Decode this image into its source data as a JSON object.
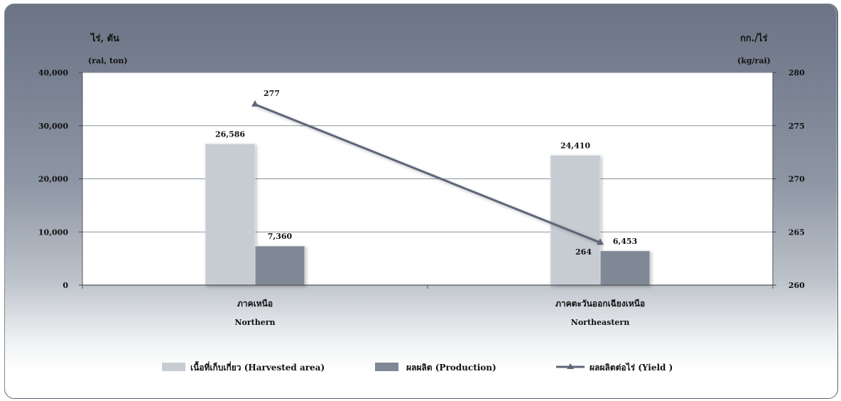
{
  "chart_data": {
    "type": "bar",
    "categories": [
      {
        "th": "ภาคเหนือ",
        "en": "Northern"
      },
      {
        "th": "ภาคตะวันออกเฉียงเหนือ",
        "en": "Northeastern"
      }
    ],
    "series": [
      {
        "name": "เนื้อที่เก็บเกี่ยว (Harvested area)",
        "kind": "bar",
        "axis": "left",
        "color": "#c7ccd3",
        "values": [
          26586,
          24410
        ],
        "labels": [
          "26,586",
          "24,410"
        ]
      },
      {
        "name": "ผลผลิต  (Production)",
        "kind": "bar",
        "axis": "left",
        "color": "#808896",
        "values": [
          7360,
          6453
        ],
        "labels": [
          "7,360",
          "6,453"
        ]
      },
      {
        "name": "ผลผลิตต่อไร่ (Yield )",
        "kind": "line",
        "axis": "right",
        "color": "#5d6678",
        "values": [
          277,
          264
        ],
        "labels": [
          "277",
          "264"
        ]
      }
    ],
    "left_axis": {
      "title_th": "ไร่, ตัน",
      "title_en": "(rai, ton)",
      "range": [
        0,
        40000
      ],
      "ticks": [
        0,
        10000,
        20000,
        30000,
        40000
      ],
      "tick_labels": [
        "0",
        "10,000",
        "20,000",
        "30,000",
        "40,000"
      ]
    },
    "right_axis": {
      "title_th": "กก./ไร่",
      "title_en": "(kg/rai)",
      "range": [
        260,
        280
      ],
      "ticks": [
        260,
        265,
        270,
        275,
        280
      ],
      "tick_labels": [
        "260",
        "265",
        "270",
        "275",
        "280"
      ]
    },
    "grid": true,
    "legend_position": "bottom"
  }
}
